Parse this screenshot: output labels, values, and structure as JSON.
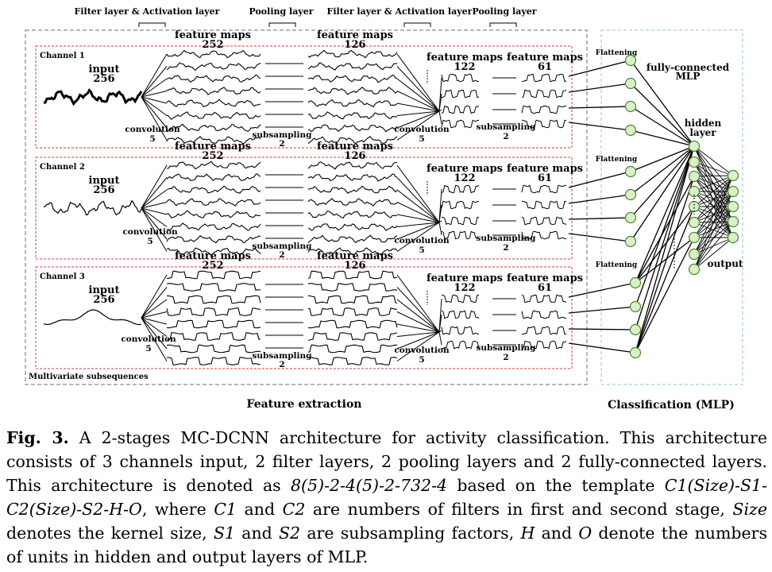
{
  "figure": {
    "top_labels": [
      "Filter layer & Activation layer",
      "Pooling layer",
      "Filter layer & Activation layer",
      "Pooling layer"
    ],
    "feature_extraction": "Feature extraction",
    "classification": "Classification (MLP)",
    "multivariate": "Multivariate subsequences",
    "flattening": "Flattening",
    "fully_connected": [
      "fully-connected",
      "MLP"
    ],
    "hidden_layer": [
      "hidden",
      "layer"
    ],
    "output": "output",
    "feature_maps": "feature maps",
    "input_word": "input",
    "input_size": "256",
    "convolution": "convolution",
    "kernel": "5",
    "subsampling": "subsampling",
    "factor": "2",
    "fm1": "252",
    "fm2": "126",
    "fm3": "122",
    "fm4": "61",
    "channels": [
      "Channel 1",
      "Channel 2",
      "Channel 3"
    ]
  },
  "caption": {
    "label": "Fig. 3.",
    "t1": " A 2-stages MC-DCNN architecture for activity classification. This architecture consists of 3 channels input, 2 filter layers, 2 pooling layers and 2 fully-connected layers. This architecture is denoted as ",
    "m1": "8(5)-2-4(5)-2-732-4",
    "t2": " based on the template ",
    "m2": "C1(Size)-S1-C2(Size)-S2-H-O",
    "t3": ", where ",
    "m3": "C1",
    "t4": " and ",
    "m4": "C2",
    "t5": " are numbers of filters in first and second stage, ",
    "m5": "Size",
    "t6": " denotes the kernel size, ",
    "m6": "S1",
    "t7": " and ",
    "m7": "S2",
    "t8": " are subsampling factors, ",
    "m8": "H",
    "t9": " and ",
    "m9": "O",
    "t10": " denote the numbers of units in hidden and output layers of MLP."
  }
}
